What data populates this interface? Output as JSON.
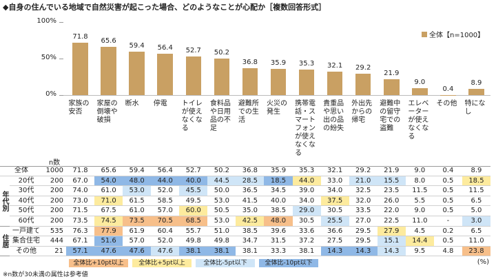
{
  "title": "◆自身の住んでいる地域で自然災害が起こった場合、どのようなことが心配か［複数回答形式］",
  "chart_data": {
    "type": "bar",
    "categories": [
      "家族の安否",
      "家屋の倒壊や破損",
      "断水",
      "停電",
      "トイレが使えなくなる",
      "食料品や日用品の不足",
      "避難所での生活",
      "火災の発生",
      "携帯電話・スマートフォンが使えなくなる",
      "貴重品や思い出の品の紛失",
      "外出先からの帰宅",
      "避難中の留守宅での盗難",
      "エレベーターが使えなくなる",
      "その他",
      "特になし"
    ],
    "series": [
      {
        "name": "全体【n=1000】",
        "color": "#c9a063",
        "values": [
          71.8,
          65.6,
          59.4,
          56.4,
          52.7,
          50.2,
          36.8,
          35.9,
          35.3,
          32.1,
          29.2,
          21.9,
          9.0,
          0.4,
          8.9
        ],
        "value_labels": [
          "71.8",
          "65.6",
          "59.4",
          "56.4",
          "52.7",
          "50.2",
          "36.8",
          "35.9",
          "35.3",
          "32.1",
          "29.2",
          "21.9",
          "9.0",
          "0.4",
          "8.9"
        ]
      }
    ],
    "ylim": [
      0,
      100
    ],
    "yticks": [
      {
        "value": 0,
        "label": "0%"
      },
      {
        "value": 50,
        "label": "50%"
      },
      {
        "value": 100,
        "label": "100%"
      }
    ],
    "legend": "top-right"
  },
  "table": {
    "n_header": "n数",
    "total": {
      "label": "全体",
      "n": 1000,
      "values": [
        "71.8",
        "65.6",
        "59.4",
        "56.4",
        "52.7",
        "50.2",
        "36.8",
        "35.9",
        "35.3",
        "32.1",
        "29.2",
        "21.9",
        "9.0",
        "0.4",
        "8.9"
      ]
    },
    "groups": [
      {
        "label": "年代別",
        "rows": [
          {
            "label": "20代",
            "n": 200,
            "values": [
              "67.0",
              "54.0",
              "48.0",
              "44.0",
              "40.0",
              "44.5",
              "28.5",
              "18.5",
              "44.0",
              "33.0",
              "21.0",
              "15.5",
              "8.0",
              "0.5",
              "18.5"
            ]
          },
          {
            "label": "30代",
            "n": 200,
            "values": [
              "74.0",
              "61.0",
              "53.0",
              "52.0",
              "45.5",
              "50.0",
              "36.5",
              "34.5",
              "39.0",
              "34.0",
              "32.5",
              "23.5",
              "11.5",
              "0.5",
              "11.5"
            ]
          },
          {
            "label": "40代",
            "n": 200,
            "values": [
              "73.0",
              "71.0",
              "61.5",
              "58.5",
              "49.5",
              "53.0",
              "41.5",
              "40.0",
              "34.0",
              "37.5",
              "32.0",
              "26.0",
              "5.5",
              "0.5",
              "6.5"
            ]
          },
          {
            "label": "50代",
            "n": 200,
            "values": [
              "71.5",
              "67.5",
              "61.0",
              "57.0",
              "60.0",
              "50.5",
              "35.0",
              "38.5",
              "29.0",
              "30.5",
              "33.5",
              "22.0",
              "9.0",
              "0.5",
              "5.0"
            ]
          },
          {
            "label": "60代",
            "n": 200,
            "values": [
              "73.5",
              "74.5",
              "73.5",
              "70.5",
              "68.5",
              "53.0",
              "42.5",
              "48.0",
              "30.5",
              "25.5",
              "27.0",
              "22.5",
              "11.0",
              "-",
              "3.0"
            ]
          }
        ]
      },
      {
        "label": "住居",
        "rows": [
          {
            "label": "一戸建て",
            "n": 535,
            "values": [
              "76.3",
              "77.9",
              "61.9",
              "60.4",
              "55.7",
              "51.0",
              "38.5",
              "39.6",
              "33.6",
              "36.6",
              "29.5",
              "27.9",
              "4.5",
              "0.2",
              "6.5"
            ]
          },
          {
            "label": "集合住宅",
            "n": 444,
            "values": [
              "67.1",
              "51.6",
              "57.0",
              "52.0",
              "49.8",
              "49.8",
              "34.7",
              "31.5",
              "37.2",
              "27.5",
              "29.5",
              "15.1",
              "14.4",
              "0.5",
              "11.0"
            ]
          },
          {
            "label": "その他",
            "n": 21,
            "values": [
              "57.1",
              "47.6",
              "47.6",
              "47.6",
              "38.1",
              "38.1",
              "38.1",
              "33.3",
              "38.1",
              "14.3",
              "14.3",
              "14.3",
              "9.5",
              "4.8",
              "23.8"
            ]
          }
        ]
      }
    ]
  },
  "highlight_legend": [
    {
      "label": "全体比+10pt以上",
      "value": 10,
      "color": "#f7bf8a"
    },
    {
      "label": "全体比+5pt以上",
      "value": 5,
      "color": "#fdeb9e"
    },
    {
      "label": "全体比-5pt以下",
      "value": -5,
      "color": "#cfe5f7"
    },
    {
      "label": "全体比-10pt以下",
      "value": -10,
      "color": "#8fb8e6"
    }
  ],
  "unit": "(%)",
  "note": "※n数が30未満の属性は参考値"
}
